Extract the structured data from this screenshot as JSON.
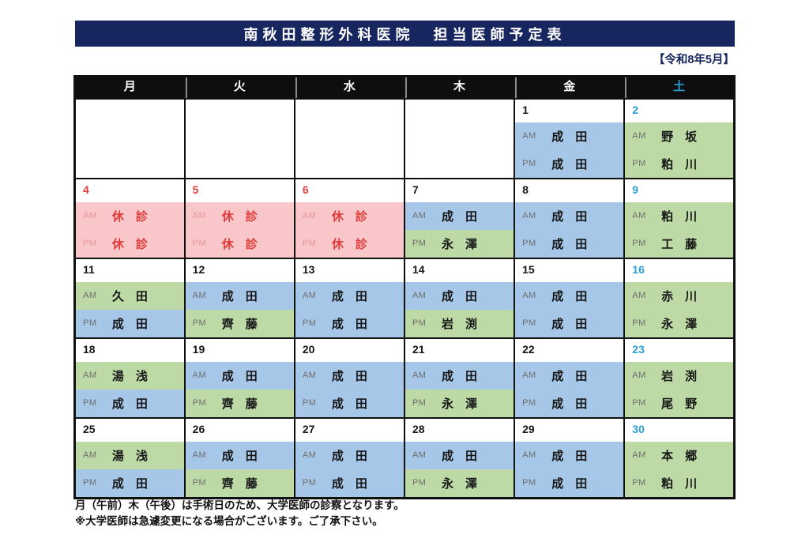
{
  "title": "南秋田整形外科医院　担当医師予定表",
  "period_label": "【令和8年5月】",
  "weekday_headers": [
    {
      "key": "mon",
      "label": "月"
    },
    {
      "key": "tue",
      "label": "火"
    },
    {
      "key": "wed",
      "label": "水"
    },
    {
      "key": "thu",
      "label": "木"
    },
    {
      "key": "fri",
      "label": "金"
    },
    {
      "key": "sat",
      "label": "土",
      "accent": true
    }
  ],
  "weeks": [
    [
      {
        "empty": true
      },
      {
        "empty": true
      },
      {
        "empty": true
      },
      {
        "empty": true
      },
      {
        "date": "1",
        "date_style": "normal",
        "am": {
          "label": "AM",
          "doctor": "成　田",
          "bg": "blue"
        },
        "pm": {
          "label": "PM",
          "doctor": "成　田",
          "bg": "blue"
        }
      },
      {
        "date": "2",
        "date_style": "sat",
        "am": {
          "label": "AM",
          "doctor": "野　坂",
          "bg": "green"
        },
        "pm": {
          "label": "PM",
          "doctor": "粕　川",
          "bg": "green"
        }
      }
    ],
    [
      {
        "date": "4",
        "date_style": "holiday",
        "am": {
          "label": "AM",
          "doctor": "休　診",
          "bg": "closed",
          "closed": true
        },
        "pm": {
          "label": "PM",
          "doctor": "休　診",
          "bg": "closed",
          "closed": true
        }
      },
      {
        "date": "5",
        "date_style": "holiday",
        "am": {
          "label": "AM",
          "doctor": "休　診",
          "bg": "closed",
          "closed": true
        },
        "pm": {
          "label": "PM",
          "doctor": "休　診",
          "bg": "closed",
          "closed": true
        }
      },
      {
        "date": "6",
        "date_style": "holiday",
        "am": {
          "label": "AM",
          "doctor": "休　診",
          "bg": "closed",
          "closed": true
        },
        "pm": {
          "label": "PM",
          "doctor": "休　診",
          "bg": "closed",
          "closed": true
        }
      },
      {
        "date": "7",
        "date_style": "normal",
        "am": {
          "label": "AM",
          "doctor": "成　田",
          "bg": "blue"
        },
        "pm": {
          "label": "PM",
          "doctor": "永　澤",
          "bg": "green"
        }
      },
      {
        "date": "8",
        "date_style": "normal",
        "am": {
          "label": "AM",
          "doctor": "成　田",
          "bg": "blue"
        },
        "pm": {
          "label": "PM",
          "doctor": "成　田",
          "bg": "blue"
        }
      },
      {
        "date": "9",
        "date_style": "sat",
        "am": {
          "label": "AM",
          "doctor": "粕　川",
          "bg": "green"
        },
        "pm": {
          "label": "PM",
          "doctor": "工　藤",
          "bg": "green"
        }
      }
    ],
    [
      {
        "date": "11",
        "date_style": "normal",
        "am": {
          "label": "AM",
          "doctor": "久　田",
          "bg": "green"
        },
        "pm": {
          "label": "PM",
          "doctor": "成　田",
          "bg": "blue"
        }
      },
      {
        "date": "12",
        "date_style": "normal",
        "am": {
          "label": "AM",
          "doctor": "成　田",
          "bg": "blue"
        },
        "pm": {
          "label": "PM",
          "doctor": "齊　藤",
          "bg": "green"
        }
      },
      {
        "date": "13",
        "date_style": "normal",
        "am": {
          "label": "AM",
          "doctor": "成　田",
          "bg": "blue"
        },
        "pm": {
          "label": "PM",
          "doctor": "成　田",
          "bg": "blue"
        }
      },
      {
        "date": "14",
        "date_style": "normal",
        "am": {
          "label": "AM",
          "doctor": "成　田",
          "bg": "blue"
        },
        "pm": {
          "label": "PM",
          "doctor": "岩　渕",
          "bg": "green"
        }
      },
      {
        "date": "15",
        "date_style": "normal",
        "am": {
          "label": "AM",
          "doctor": "成　田",
          "bg": "blue"
        },
        "pm": {
          "label": "PM",
          "doctor": "成　田",
          "bg": "blue"
        }
      },
      {
        "date": "16",
        "date_style": "sat",
        "am": {
          "label": "AM",
          "doctor": "赤　川",
          "bg": "green"
        },
        "pm": {
          "label": "PM",
          "doctor": "永　澤",
          "bg": "green"
        }
      }
    ],
    [
      {
        "date": "18",
        "date_style": "normal",
        "am": {
          "label": "AM",
          "doctor": "湯　浅",
          "bg": "green"
        },
        "pm": {
          "label": "PM",
          "doctor": "成　田",
          "bg": "blue"
        }
      },
      {
        "date": "19",
        "date_style": "normal",
        "am": {
          "label": "AM",
          "doctor": "成　田",
          "bg": "blue"
        },
        "pm": {
          "label": "PM",
          "doctor": "齊　藤",
          "bg": "green"
        }
      },
      {
        "date": "20",
        "date_style": "normal",
        "am": {
          "label": "AM",
          "doctor": "成　田",
          "bg": "blue"
        },
        "pm": {
          "label": "PM",
          "doctor": "成　田",
          "bg": "blue"
        }
      },
      {
        "date": "21",
        "date_style": "normal",
        "am": {
          "label": "AM",
          "doctor": "成　田",
          "bg": "blue"
        },
        "pm": {
          "label": "PM",
          "doctor": "永　澤",
          "bg": "green"
        }
      },
      {
        "date": "22",
        "date_style": "normal",
        "am": {
          "label": "AM",
          "doctor": "成　田",
          "bg": "blue"
        },
        "pm": {
          "label": "PM",
          "doctor": "成　田",
          "bg": "blue"
        }
      },
      {
        "date": "23",
        "date_style": "sat",
        "am": {
          "label": "AM",
          "doctor": "岩　渕",
          "bg": "green"
        },
        "pm": {
          "label": "PM",
          "doctor": "尾　野",
          "bg": "green"
        }
      }
    ],
    [
      {
        "date": "25",
        "date_style": "normal",
        "am": {
          "label": "AM",
          "doctor": "湯　浅",
          "bg": "green"
        },
        "pm": {
          "label": "PM",
          "doctor": "成　田",
          "bg": "blue"
        }
      },
      {
        "date": "26",
        "date_style": "normal",
        "am": {
          "label": "AM",
          "doctor": "成　田",
          "bg": "blue"
        },
        "pm": {
          "label": "PM",
          "doctor": "齊　藤",
          "bg": "green"
        }
      },
      {
        "date": "27",
        "date_style": "normal",
        "am": {
          "label": "AM",
          "doctor": "成　田",
          "bg": "blue"
        },
        "pm": {
          "label": "PM",
          "doctor": "成　田",
          "bg": "blue"
        }
      },
      {
        "date": "28",
        "date_style": "normal",
        "am": {
          "label": "AM",
          "doctor": "成　田",
          "bg": "blue"
        },
        "pm": {
          "label": "PM",
          "doctor": "永　澤",
          "bg": "green"
        }
      },
      {
        "date": "29",
        "date_style": "normal",
        "am": {
          "label": "AM",
          "doctor": "成　田",
          "bg": "blue"
        },
        "pm": {
          "label": "PM",
          "doctor": "成　田",
          "bg": "blue"
        }
      },
      {
        "date": "30",
        "date_style": "sat",
        "am": {
          "label": "AM",
          "doctor": "本　郷",
          "bg": "green"
        },
        "pm": {
          "label": "PM",
          "doctor": "粕　川",
          "bg": "green"
        }
      }
    ]
  ],
  "notes": [
    "月（午前）木（午後）は手術日のため、大学医師の診察となります。",
    "※大学医師は急遽変更になる場合がございます。ご了承下さい。"
  ],
  "colors": {
    "navy": "#17265e",
    "header_bg": "#0e0e0e",
    "saturday_blue": "#2aa0d8",
    "holiday_red": "#e03a3a",
    "slot_blue": "#a6c7e7",
    "slot_green": "#bdd9a5",
    "closed_pink": "#f9c7c9",
    "closed_label_red": "#e89597"
  }
}
